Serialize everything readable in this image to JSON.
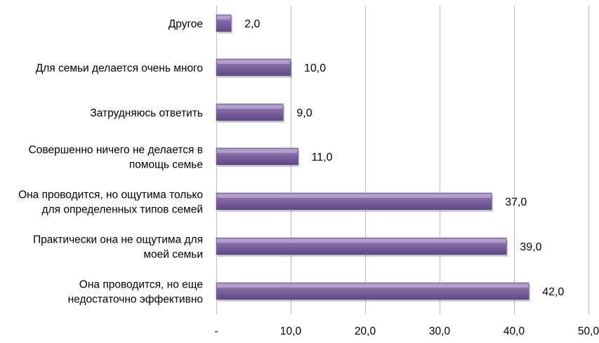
{
  "chart_data": {
    "type": "bar",
    "orientation": "horizontal",
    "categories": [
      [
        "Другое"
      ],
      [
        "Для семьи делается очень много"
      ],
      [
        "Затрудняюсь ответить"
      ],
      [
        "Совершенно ничего не делается в",
        "помощь семье"
      ],
      [
        "Она проводится, но ощутима только",
        "для определенных типов семей"
      ],
      [
        "Практически она не ощутима для",
        "моей семьи"
      ],
      [
        "Она проводится, но еще",
        "недостаточно эффективно"
      ]
    ],
    "values": [
      2.0,
      10.0,
      9.0,
      11.0,
      37.0,
      39.0,
      42.0
    ],
    "value_labels": [
      "2,0",
      "10,0",
      "9,0",
      "11,0",
      "37,0",
      "39,0",
      "42,0"
    ],
    "xlim": [
      0,
      50
    ],
    "x_ticks": [
      0,
      10,
      20,
      30,
      40,
      50
    ],
    "x_tick_labels": [
      "-",
      "10,0",
      "20,0",
      "30,0",
      "40,0",
      "50,0"
    ],
    "grid": "vertical",
    "bar_color": "#8064a2",
    "bar_color_light": "#a28bc4",
    "bar_color_dark": "#5e4a80",
    "grid_color": "#bfbfbf"
  }
}
